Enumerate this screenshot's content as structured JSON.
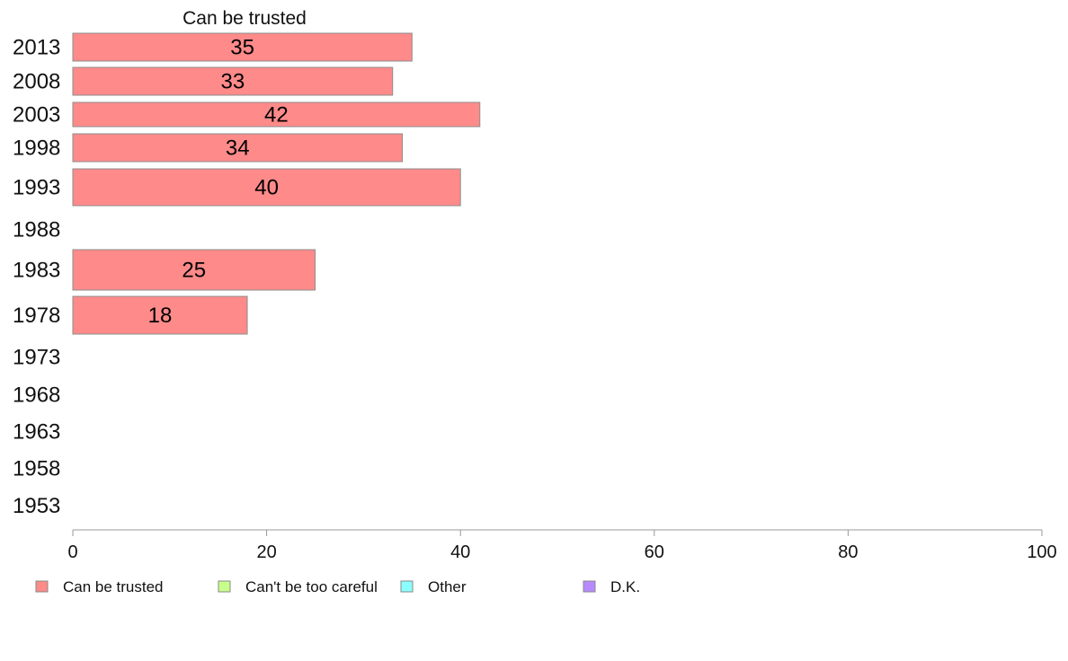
{
  "chart_data": {
    "type": "bar",
    "orientation": "horizontal",
    "title": "Can be trusted",
    "categories": [
      "2013",
      "2008",
      "2003",
      "1998",
      "1993",
      "1988",
      "1983",
      "1978",
      "1973",
      "1968",
      "1963",
      "1958",
      "1953"
    ],
    "series": [
      {
        "name": "Can be trusted",
        "color": "#ff8a8a",
        "values": [
          35,
          33,
          42,
          34,
          40,
          null,
          25,
          18,
          null,
          null,
          null,
          null,
          null
        ],
        "labels": [
          "35",
          "33",
          "42",
          "34",
          "40",
          "",
          "25",
          "18",
          "",
          "",
          "",
          "",
          ""
        ]
      }
    ],
    "xlim": [
      0,
      100
    ],
    "xticks": [
      0,
      20,
      40,
      60,
      80,
      100
    ],
    "xtick_labels": [
      "0",
      "20",
      "40",
      "60",
      "80",
      "100"
    ],
    "grid": false,
    "legend_position": "bottom",
    "legend": [
      {
        "label": "Can be trusted",
        "color": "#ff8a8a"
      },
      {
        "label": "Can't be too careful",
        "color": "#c8ff8a"
      },
      {
        "label": "Other",
        "color": "#8affff"
      },
      {
        "label": "D.K.",
        "color": "#b88aff"
      }
    ]
  }
}
